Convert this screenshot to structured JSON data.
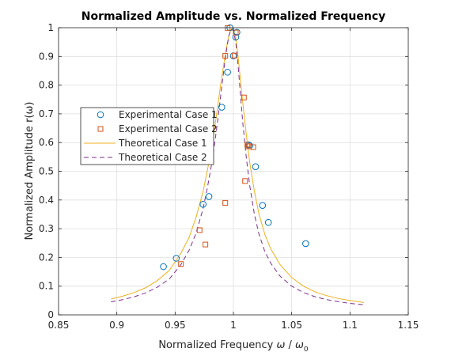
{
  "chart_data": {
    "type": "scatter",
    "title": "Normalized Amplitude vs. Normalized Frequency",
    "xlabel_main": "Normalized Frequency ",
    "xlabel_omega": "ω",
    "xlabel_mid": " / ",
    "xlabel_omega0": "ω",
    "xlabel_sub": "0",
    "ylabel": "Normalized Amplitude r(ω)",
    "xlim": [
      0.85,
      1.15
    ],
    "ylim": [
      0,
      1
    ],
    "grid": true,
    "legend_placement": "center-left",
    "x_ticks": [
      {
        "value": 0.85,
        "label": "0.85"
      },
      {
        "value": 0.9,
        "label": "0.9"
      },
      {
        "value": 0.95,
        "label": "0.95"
      },
      {
        "value": 1.0,
        "label": "1"
      },
      {
        "value": 1.05,
        "label": "1.05"
      },
      {
        "value": 1.1,
        "label": "1.1"
      },
      {
        "value": 1.15,
        "label": "1.15"
      }
    ],
    "y_ticks": [
      {
        "value": 0,
        "label": "0"
      },
      {
        "value": 0.1,
        "label": "0.1"
      },
      {
        "value": 0.2,
        "label": "0.2"
      },
      {
        "value": 0.3,
        "label": "0.3"
      },
      {
        "value": 0.4,
        "label": "0.4"
      },
      {
        "value": 0.5,
        "label": "0.5"
      },
      {
        "value": 0.6,
        "label": "0.6"
      },
      {
        "value": 0.7,
        "label": "0.7"
      },
      {
        "value": 0.8,
        "label": "0.8"
      },
      {
        "value": 0.9,
        "label": "0.9"
      },
      {
        "value": 1.0,
        "label": "1"
      }
    ],
    "series": [
      {
        "name": "Experimental Case 1",
        "kind": "circle",
        "color": "#0072BD",
        "x": [
          0.94,
          0.951,
          0.974,
          0.979,
          0.99,
          0.995,
          0.997,
          1.0,
          1.002,
          1.003,
          1.013,
          1.014,
          1.019,
          1.025,
          1.03,
          1.062
        ],
        "y": [
          0.168,
          0.197,
          0.385,
          0.412,
          0.723,
          0.845,
          1.0,
          0.902,
          0.967,
          0.984,
          0.592,
          0.589,
          0.516,
          0.381,
          0.322,
          0.248
        ]
      },
      {
        "name": "Experimental Case 2",
        "kind": "square",
        "color": "#D95319",
        "x": [
          0.955,
          0.971,
          0.976,
          0.993,
          0.993,
          0.995,
          1.001,
          1.002,
          1.009,
          1.01,
          1.012,
          1.013,
          1.017
        ],
        "y": [
          0.177,
          0.295,
          0.245,
          0.39,
          0.902,
          0.999,
          0.903,
          0.983,
          0.757,
          0.466,
          0.593,
          0.587,
          0.584
        ]
      },
      {
        "name": "Theoretical Case 1",
        "kind": "line",
        "color": "#EDB120",
        "dash": false,
        "x": [
          0.895,
          0.905,
          0.915,
          0.925,
          0.935,
          0.945,
          0.955,
          0.962,
          0.968,
          0.974,
          0.978,
          0.982,
          0.986,
          0.989,
          0.992,
          0.994,
          0.996,
          0.998,
          1.0,
          1.002,
          1.004,
          1.006,
          1.008,
          1.011,
          1.014,
          1.018,
          1.022,
          1.027,
          1.032,
          1.04,
          1.05,
          1.06,
          1.07,
          1.08,
          1.09,
          1.1,
          1.112
        ],
        "y": [
          0.055,
          0.065,
          0.078,
          0.095,
          0.12,
          0.155,
          0.215,
          0.27,
          0.34,
          0.43,
          0.51,
          0.6,
          0.71,
          0.8,
          0.88,
          0.93,
          0.97,
          0.995,
          0.995,
          0.965,
          0.9,
          0.82,
          0.74,
          0.63,
          0.53,
          0.43,
          0.35,
          0.28,
          0.23,
          0.175,
          0.13,
          0.1,
          0.08,
          0.067,
          0.057,
          0.05,
          0.043
        ]
      },
      {
        "name": "Theoretical Case 2",
        "kind": "line",
        "color": "#7E2F8E",
        "dash": true,
        "x": [
          0.895,
          0.905,
          0.915,
          0.925,
          0.935,
          0.945,
          0.955,
          0.962,
          0.968,
          0.974,
          0.978,
          0.982,
          0.986,
          0.989,
          0.992,
          0.994,
          0.996,
          0.998,
          1.0,
          1.002,
          1.004,
          1.006,
          1.008,
          1.011,
          1.014,
          1.018,
          1.022,
          1.027,
          1.032,
          1.04,
          1.05,
          1.06,
          1.07,
          1.08,
          1.09,
          1.1,
          1.112
        ],
        "y": [
          0.045,
          0.053,
          0.063,
          0.077,
          0.097,
          0.125,
          0.175,
          0.225,
          0.285,
          0.37,
          0.45,
          0.54,
          0.66,
          0.76,
          0.86,
          0.92,
          0.97,
          0.995,
          0.99,
          0.95,
          0.87,
          0.77,
          0.67,
          0.55,
          0.45,
          0.35,
          0.28,
          0.22,
          0.18,
          0.135,
          0.1,
          0.078,
          0.063,
          0.053,
          0.046,
          0.04,
          0.035
        ]
      }
    ]
  }
}
